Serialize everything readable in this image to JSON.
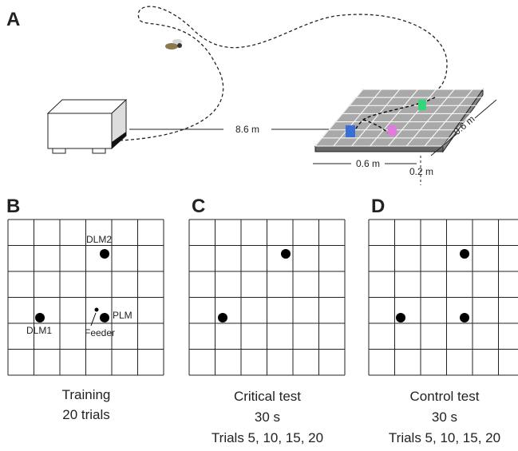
{
  "panels": {
    "a": {
      "label": "A",
      "distance": "8.6 m",
      "width": "0.6 m",
      "depth": "0.6 m",
      "height": "0.2 m"
    },
    "b": {
      "label": "B",
      "landmarks": [
        "DLM2",
        "DLM1",
        "PLM"
      ],
      "feeder": "Feeder",
      "caption": [
        "Training",
        "20 trials"
      ]
    },
    "c": {
      "label": "C",
      "caption": [
        "Critical test",
        "30 s",
        "Trials 5, 10, 15, 20"
      ]
    },
    "d": {
      "label": "D",
      "caption": [
        "Control test",
        "30 s",
        "Trials 5, 10, 15, 20"
      ]
    }
  }
}
